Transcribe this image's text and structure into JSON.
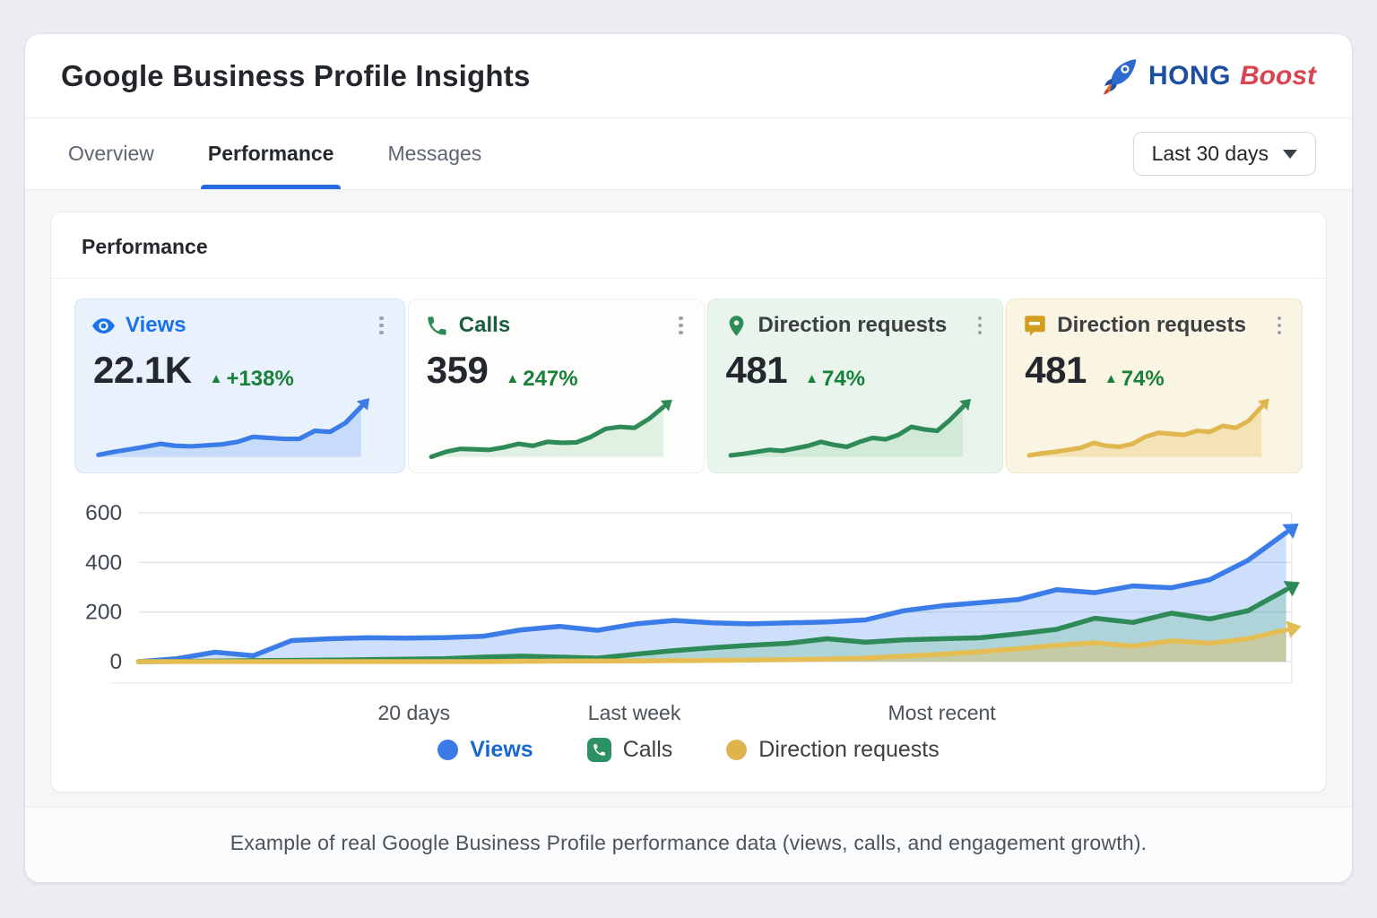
{
  "header": {
    "title": "Google Business Profile Insights",
    "brand": {
      "primary": "HONG",
      "accent": "Boost",
      "primary_color": "#1b4f9e",
      "accent_color": "#d94452",
      "logo_icon": "rocket-icon"
    }
  },
  "tabs": [
    {
      "label": "Overview",
      "active": false
    },
    {
      "label": "Performance",
      "active": true
    },
    {
      "label": "Messages",
      "active": false
    }
  ],
  "date_range": {
    "selected": "Last 30 days"
  },
  "panel": {
    "title": "Performance"
  },
  "stat_cards": [
    {
      "label": "Views",
      "icon": "eye-icon",
      "value": "22.1K",
      "delta": "+138%",
      "delta_color": "#188038",
      "label_color": "#1a73e8",
      "bg": "#e9f1fc",
      "border": "#d6e3f8",
      "line_color": "#3b7ce8",
      "fill_color": "rgba(66,133,244,0.20)",
      "sparkline": [
        4,
        10,
        15,
        20,
        26,
        22,
        21,
        23,
        25,
        30,
        40,
        38,
        36,
        36,
        52,
        50,
        68,
        100
      ]
    },
    {
      "label": "Calls",
      "icon": "phone-icon",
      "value": "359",
      "delta": "247%",
      "delta_color": "#188038",
      "label_color": "#1b5e3f",
      "bg": "#fdfdfc",
      "border": "#eceef0",
      "line_color": "#2e8b57",
      "fill_color": "rgba(52,168,83,0.14)",
      "sparkline": [
        0,
        10,
        16,
        15,
        14,
        19,
        26,
        22,
        30,
        28,
        29,
        40,
        56,
        60,
        58,
        76,
        100
      ]
    },
    {
      "label": "Direction requests",
      "icon": "pin-icon",
      "value": "481",
      "delta": "74%",
      "delta_color": "#188038",
      "label_color": "#3c4043",
      "bg": "#e8f4ec",
      "border": "#d8ecdf",
      "line_color": "#2e8b57",
      "fill_color": "rgba(52,168,83,0.13)",
      "sparkline": [
        3,
        6,
        10,
        14,
        12,
        17,
        22,
        30,
        24,
        20,
        30,
        38,
        35,
        44,
        60,
        55,
        52,
        74,
        100
      ]
    },
    {
      "label": "Direction requests",
      "icon": "chat-icon",
      "value": "481",
      "delta": "74%",
      "delta_color": "#188038",
      "label_color": "#3c4043",
      "bg": "#faf4e3",
      "border": "#f0e6c8",
      "line_color": "#e0b64f",
      "fill_color": "rgba(230,190,80,0.30)",
      "sparkline": [
        3,
        7,
        10,
        14,
        18,
        28,
        22,
        20,
        26,
        40,
        48,
        46,
        44,
        52,
        50,
        62,
        58,
        72,
        100
      ]
    }
  ],
  "chart_data": {
    "type": "area",
    "x_range_label": "Last 30 days",
    "ylim": [
      0,
      600
    ],
    "yticks": [
      0,
      200,
      400,
      600
    ],
    "grid": true,
    "legend_position": "bottom",
    "xlabels": [
      {
        "label": "20 days",
        "pos": 0.24
      },
      {
        "label": "Last week",
        "pos": 0.432
      },
      {
        "label": "Most recent",
        "pos": 0.7
      }
    ],
    "series": [
      {
        "name": "Views",
        "color": "#3b7ce8",
        "fill": "rgba(66,133,244,0.26)",
        "values": [
          0,
          12,
          38,
          24,
          85,
          92,
          96,
          95,
          97,
          102,
          128,
          142,
          126,
          152,
          166,
          156,
          152,
          156,
          160,
          168,
          205,
          225,
          238,
          250,
          290,
          278,
          305,
          298,
          330,
          408,
          520
        ]
      },
      {
        "name": "Calls",
        "color": "#2e8b57",
        "fill": "rgba(52,168,83,0.20)",
        "values": [
          0,
          1,
          2,
          4,
          5,
          6,
          8,
          10,
          12,
          18,
          22,
          18,
          14,
          30,
          44,
          56,
          66,
          74,
          92,
          78,
          88,
          92,
          96,
          112,
          130,
          175,
          158,
          195,
          172,
          205,
          290
        ]
      },
      {
        "name": "Direction requests",
        "color": "#e4bd55",
        "fill": "rgba(232,193,86,0.40)",
        "values": [
          0,
          0,
          0,
          0,
          0,
          0,
          0,
          0,
          0,
          0,
          1,
          2,
          2,
          3,
          4,
          5,
          6,
          8,
          10,
          14,
          22,
          30,
          40,
          52,
          66,
          76,
          62,
          84,
          74,
          92,
          128
        ]
      }
    ]
  },
  "legend": [
    {
      "label": "Views",
      "swatch": "dot",
      "color": "#3b79e7",
      "text_color": "#1a67d3"
    },
    {
      "label": "Calls",
      "swatch": "phone-chip",
      "color": "#2e9164",
      "text_color": "#3c4043"
    },
    {
      "label": "Direction requests",
      "swatch": "dot",
      "color": "#dfb44c",
      "text_color": "#3c4043"
    }
  ],
  "footer": {
    "caption": "Example of real Google Business Profile performance data (views, calls, and engagement growth)."
  }
}
